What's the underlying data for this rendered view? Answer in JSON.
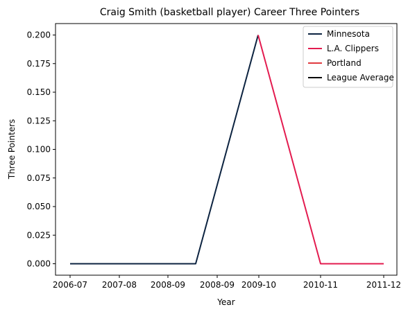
{
  "chart_data": {
    "type": "line",
    "title": "Craig Smith (basketball player) Career Three Pointers",
    "xlabel": "Year",
    "ylabel": "Three Pointers",
    "x_tick_labels": [
      "2006-07",
      "2007-08",
      "2008-09",
      "2008-09",
      "2009-10",
      "2010-11",
      "2011-12"
    ],
    "y_ticks": [
      0.0,
      0.025,
      0.05,
      0.075,
      0.1,
      0.125,
      0.15,
      0.175,
      0.2
    ],
    "y_tick_labels": [
      "0.000",
      "0.025",
      "0.050",
      "0.075",
      "0.100",
      "0.125",
      "0.150",
      "0.175",
      "0.200"
    ],
    "ylim": [
      -0.01,
      0.21
    ],
    "grid": false,
    "legend_position": "top-right",
    "series": [
      {
        "name": "Minnesota",
        "color": "#0c2340",
        "points": [
          {
            "x": "2006-07",
            "y": 0.0
          },
          {
            "x": "2007-08",
            "y": 0.0
          },
          {
            "x": "2008-09",
            "y": 0.0
          },
          {
            "x": "2009-10",
            "y": 0.2
          }
        ]
      },
      {
        "name": "L.A. Clippers",
        "color": "#e31b4f",
        "points": [
          {
            "x": "2009-10",
            "y": 0.2
          },
          {
            "x": "2010-11",
            "y": 0.0
          },
          {
            "x": "2011-12",
            "y": 0.0
          }
        ]
      },
      {
        "name": "Portland",
        "color": "#e03a3e",
        "points": []
      },
      {
        "name": "League Average",
        "color": "#000000",
        "points": []
      }
    ]
  }
}
